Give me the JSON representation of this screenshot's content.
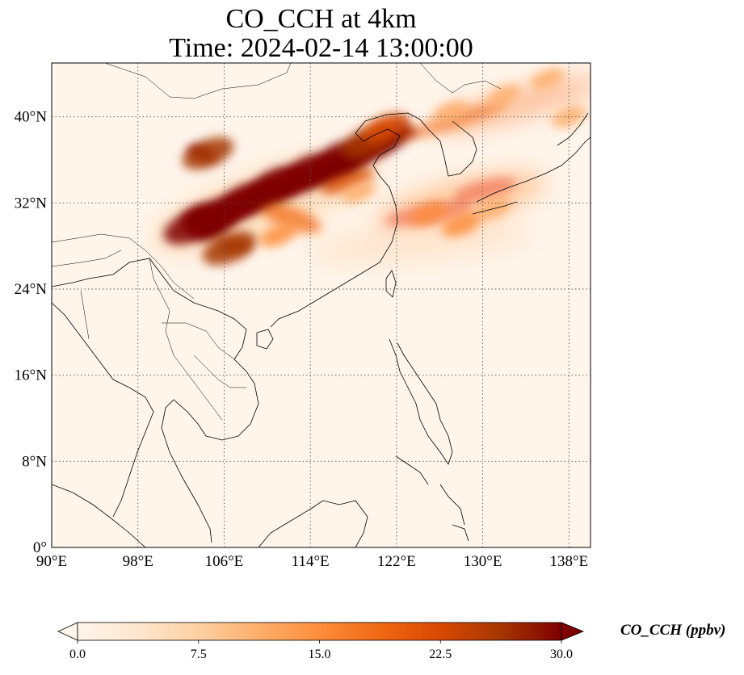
{
  "title": {
    "line1": "CO_CCH at 4km",
    "line2": "Time: 2024-02-14 13:00:00"
  },
  "map": {
    "extent": {
      "lon": [
        90,
        140
      ],
      "lat": [
        0,
        45
      ]
    },
    "lon_ticks": [
      {
        "value": 90,
        "label": "90°E"
      },
      {
        "value": 98,
        "label": "98°E"
      },
      {
        "value": 106,
        "label": "106°E"
      },
      {
        "value": 114,
        "label": "114°E"
      },
      {
        "value": 122,
        "label": "122°E"
      },
      {
        "value": 130,
        "label": "130°E"
      },
      {
        "value": 138,
        "label": "138°E"
      }
    ],
    "lat_ticks": [
      {
        "value": 0,
        "label": "0°"
      },
      {
        "value": 8,
        "label": "8°N"
      },
      {
        "value": 16,
        "label": "16°N"
      },
      {
        "value": 24,
        "label": "24°N"
      },
      {
        "value": 32,
        "label": "32°N"
      },
      {
        "value": 40,
        "label": "40°N"
      }
    ],
    "gridlines": true,
    "plumes": [
      {
        "lon": 103.0,
        "lat": 29.8,
        "value": 30
      },
      {
        "lon": 105.5,
        "lat": 31.0,
        "value": 30
      },
      {
        "lon": 108.0,
        "lat": 32.3,
        "value": 30
      },
      {
        "lon": 111.0,
        "lat": 33.8,
        "value": 30
      },
      {
        "lon": 114.0,
        "lat": 35.0,
        "value": 30
      },
      {
        "lon": 117.0,
        "lat": 36.3,
        "value": 30
      },
      {
        "lon": 119.5,
        "lat": 37.8,
        "value": 28
      },
      {
        "lon": 121.0,
        "lat": 39.0,
        "value": 22
      },
      {
        "lon": 106.5,
        "lat": 27.8,
        "value": 28
      },
      {
        "lon": 104.5,
        "lat": 36.6,
        "value": 26
      },
      {
        "lon": 111.0,
        "lat": 29.0,
        "value": 14
      },
      {
        "lon": 118.5,
        "lat": 33.0,
        "value": 12
      },
      {
        "lon": 125.0,
        "lat": 31.0,
        "value": 14
      },
      {
        "lon": 128.0,
        "lat": 30.0,
        "value": 16
      },
      {
        "lon": 131.0,
        "lat": 31.5,
        "value": 13
      },
      {
        "lon": 127.0,
        "lat": 40.5,
        "value": 12
      },
      {
        "lon": 132.0,
        "lat": 42.0,
        "value": 11
      },
      {
        "lon": 136.0,
        "lat": 43.5,
        "value": 12
      },
      {
        "lon": 138.0,
        "lat": 40.0,
        "value": 12
      }
    ]
  },
  "colorbar": {
    "label": "CO_CCH (ppbv)",
    "min": 0,
    "max": 30,
    "ticks": [
      {
        "value": 0,
        "label": "0.0"
      },
      {
        "value": 7.5,
        "label": "7.5"
      },
      {
        "value": 15,
        "label": "15.0"
      },
      {
        "value": 22.5,
        "label": "22.5"
      },
      {
        "value": 30,
        "label": "30.0"
      }
    ],
    "colors": [
      "#fff5eb",
      "#fee6ce",
      "#fdd0a2",
      "#fdae6b",
      "#fd8d3c",
      "#f16913",
      "#d94801",
      "#a63603",
      "#7f0000"
    ],
    "extend": "both"
  }
}
